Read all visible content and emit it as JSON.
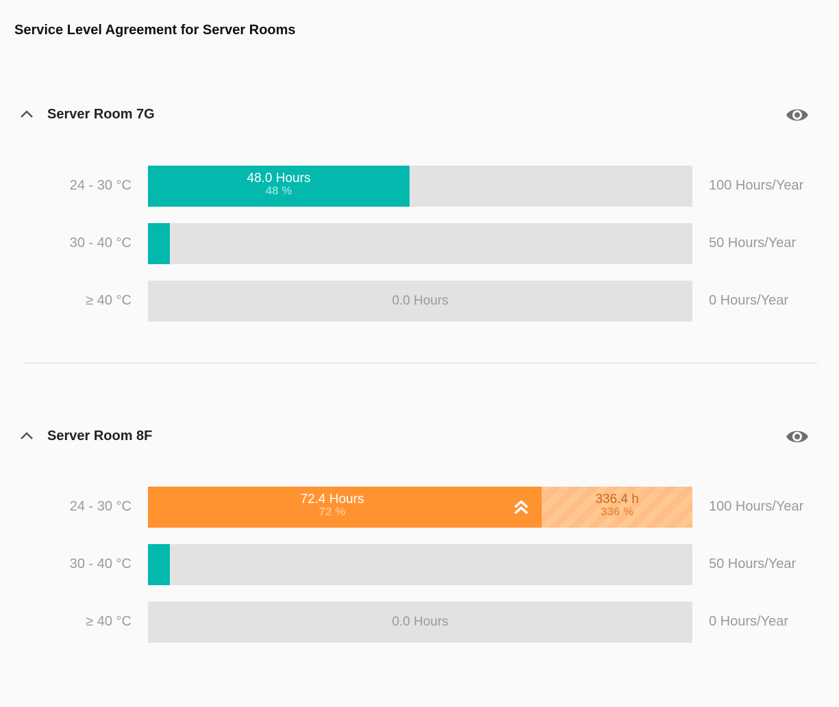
{
  "page_title": "Service Level Agreement for Server Rooms",
  "colors": {
    "teal": "#03b8ad",
    "orange": "#ff9330",
    "overflow": "#ffc892",
    "track": "#e2e2e2"
  },
  "rooms": [
    {
      "name": "Server Room 7G",
      "collapse_icon": "chevron-up-icon",
      "view_icon": "eye-icon",
      "rows": [
        {
          "label": "24 - 30 °C",
          "hours_text": "48.0 Hours",
          "pct_text": "48 %",
          "fill_fraction": 0.48,
          "limit": "100 Hours/Year"
        },
        {
          "label": "30 - 40 °C",
          "fill_fraction": 0.04,
          "limit": "50 Hours/Year"
        },
        {
          "label": "≥ 40 °C",
          "hours_text": "0.0 Hours",
          "fill_fraction": 0.0,
          "limit": "0 Hours/Year"
        }
      ]
    },
    {
      "name": "Server Room 8F",
      "collapse_icon": "chevron-up-icon",
      "view_icon": "eye-icon",
      "rows": [
        {
          "label": "24 - 30 °C",
          "hours_text": "72.4 Hours",
          "pct_text": "72 %",
          "fill_fraction": 0.723,
          "overflow_text": "336.4 h",
          "overflow_pct": "336 %",
          "overflow_icon": "double-chevron-up-icon",
          "limit": "100 Hours/Year"
        },
        {
          "label": "30 - 40 °C",
          "fill_fraction": 0.04,
          "limit": "50 Hours/Year"
        },
        {
          "label": "≥ 40 °C",
          "hours_text": "0.0 Hours",
          "fill_fraction": 0.0,
          "limit": "0 Hours/Year"
        }
      ]
    }
  ]
}
